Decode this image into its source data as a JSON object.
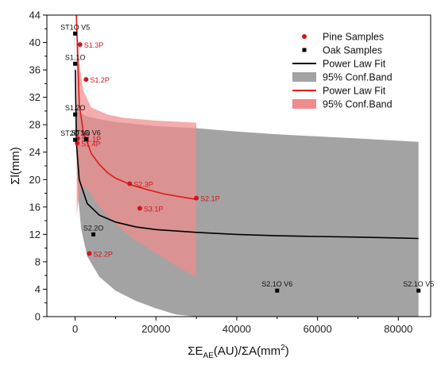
{
  "chart_data": {
    "type": "scatter",
    "xlim": [
      -7000,
      88000
    ],
    "ylim": [
      0,
      44
    ],
    "x_ticks": [
      "0",
      "20000",
      "40000",
      "60000",
      "80000"
    ],
    "x_tick_values": [
      0,
      20000,
      40000,
      60000,
      80000
    ],
    "y_ticks": [
      "0",
      "4",
      "8",
      "12",
      "16",
      "20",
      "24",
      "28",
      "32",
      "36",
      "40",
      "44"
    ],
    "y_tick_values": [
      0,
      4,
      8,
      12,
      16,
      20,
      24,
      28,
      32,
      36,
      40,
      44
    ],
    "xlabel": {
      "main": "ΣE",
      "sub": "AE",
      "rest": "(AU)/ΣA(mm",
      "sup": "2",
      "close": ")"
    },
    "ylabel": "Σl(mm)",
    "colors": {
      "pine": "#d0161b",
      "oak": "#000000",
      "pine_band": "#f08c8c",
      "oak_band": "#a3a3a3",
      "pine_fit": "#e01b1b",
      "oak_fit": "#000000"
    },
    "legend": {
      "placement": "top-right",
      "items": [
        {
          "label": "Pine Samples",
          "kind": "pine-marker"
        },
        {
          "label": "Oak Samples",
          "kind": "oak-marker"
        },
        {
          "label": "Power Law Fit",
          "kind": "oak-fit"
        },
        {
          "label": "95% Conf.Band",
          "kind": "oak-band"
        },
        {
          "label": "Power Law Fit",
          "kind": "pine-fit"
        },
        {
          "label": "95% Conf.Band",
          "kind": "pine-band"
        }
      ]
    },
    "series": [
      {
        "name": "Pine Samples",
        "points": [
          {
            "label": "S1.3P",
            "x": 1200,
            "y": 39.7
          },
          {
            "label": "S1.2P",
            "x": 2700,
            "y": 34.6
          },
          {
            "label": "S1.1P",
            "x": 600,
            "y": 26.0
          },
          {
            "label": "S1.4P",
            "x": 500,
            "y": 25.3
          },
          {
            "label": "S2.3P",
            "x": 13500,
            "y": 19.4
          },
          {
            "label": "S2.1P",
            "x": 30000,
            "y": 17.3
          },
          {
            "label": "S3.1P",
            "x": 16000,
            "y": 15.8
          },
          {
            "label": "S2.2P",
            "x": 3500,
            "y": 9.2
          }
        ]
      },
      {
        "name": "Oak Samples",
        "points": [
          {
            "label": "ST1O V5",
            "x": 0,
            "y": 41.3
          },
          {
            "label": "S1.1O",
            "x": 0,
            "y": 36.9
          },
          {
            "label": "S1.2O",
            "x": 0,
            "y": 29.5
          },
          {
            "label": "ST2O V6",
            "x": 0,
            "y": 25.8
          },
          {
            "label": "ST1O V6",
            "x": 2700,
            "y": 25.9
          },
          {
            "label": "S2.2O",
            "x": 4500,
            "y": 12.0
          },
          {
            "label": "S2.1O V6",
            "x": 50000,
            "y": 3.8
          },
          {
            "label": "S2.1O V5",
            "x": 85000,
            "y": 3.8
          }
        ]
      }
    ],
    "fits": [
      {
        "name": "Power Law Fit",
        "color_key": "oak_fit",
        "points": [
          [
            40,
            36.0
          ],
          [
            300,
            25.5
          ],
          [
            1000,
            20.0
          ],
          [
            3000,
            16.5
          ],
          [
            6000,
            14.8
          ],
          [
            10000,
            13.8
          ],
          [
            15000,
            13.1
          ],
          [
            20000,
            12.7
          ],
          [
            30000,
            12.3
          ],
          [
            40000,
            12.0
          ],
          [
            50000,
            11.8
          ],
          [
            60000,
            11.7
          ],
          [
            70000,
            11.6
          ],
          [
            85000,
            11.4
          ]
        ]
      },
      {
        "name": "Power Law Fit",
        "color_key": "pine_fit",
        "points": [
          [
            300,
            44.0
          ],
          [
            1000,
            31.0
          ],
          [
            2000,
            27.0
          ],
          [
            4000,
            23.8
          ],
          [
            6000,
            22.2
          ],
          [
            8000,
            21.0
          ],
          [
            10000,
            20.2
          ],
          [
            14000,
            19.2
          ],
          [
            18000,
            18.5
          ],
          [
            22000,
            17.9
          ],
          [
            26000,
            17.5
          ],
          [
            30000,
            17.1
          ]
        ]
      }
    ],
    "bands": [
      {
        "name": "95% Conf.Band",
        "color_key": "oak_band",
        "upper": [
          [
            -300,
            44.0
          ],
          [
            80,
            35.0
          ],
          [
            300,
            30.5
          ],
          [
            1000,
            29.8
          ],
          [
            3000,
            29.2
          ],
          [
            6000,
            28.8
          ],
          [
            10000,
            28.4
          ],
          [
            20000,
            27.8
          ],
          [
            30000,
            27.5
          ],
          [
            40000,
            27.0
          ],
          [
            50000,
            26.6
          ],
          [
            60000,
            26.3
          ],
          [
            70000,
            26.0
          ],
          [
            85000,
            25.5
          ]
        ],
        "lower": [
          [
            85000,
            0.0
          ],
          [
            70000,
            0.0
          ],
          [
            60000,
            0.0
          ],
          [
            50000,
            0.0
          ],
          [
            40000,
            0.0
          ],
          [
            30000,
            0.0
          ],
          [
            25000,
            0.3
          ],
          [
            20000,
            1.2
          ],
          [
            15000,
            2.3
          ],
          [
            10000,
            3.8
          ],
          [
            6000,
            5.8
          ],
          [
            3000,
            8.8
          ],
          [
            1500,
            12.8
          ],
          [
            800,
            17.0
          ],
          [
            400,
            22.0
          ],
          [
            150,
            29.0
          ],
          [
            -300,
            44.0
          ]
        ]
      },
      {
        "name": "95% Conf.Band",
        "color_key": "pine_band",
        "upper": [
          [
            400,
            44.0
          ],
          [
            1000,
            37.0
          ],
          [
            2000,
            33.0
          ],
          [
            4000,
            30.5
          ],
          [
            8000,
            29.5
          ],
          [
            12000,
            29.0
          ],
          [
            20000,
            28.6
          ],
          [
            30000,
            28.3
          ]
        ],
        "lower": [
          [
            30000,
            5.8
          ],
          [
            26000,
            7.0
          ],
          [
            22000,
            8.5
          ],
          [
            18000,
            10.0
          ],
          [
            14000,
            11.5
          ],
          [
            10000,
            13.5
          ],
          [
            7000,
            15.3
          ],
          [
            5000,
            16.8
          ],
          [
            3500,
            18.2
          ],
          [
            2500,
            19.0
          ],
          [
            1500,
            18.8
          ],
          [
            700,
            16.5
          ],
          [
            400,
            14.5
          ]
        ]
      }
    ]
  }
}
